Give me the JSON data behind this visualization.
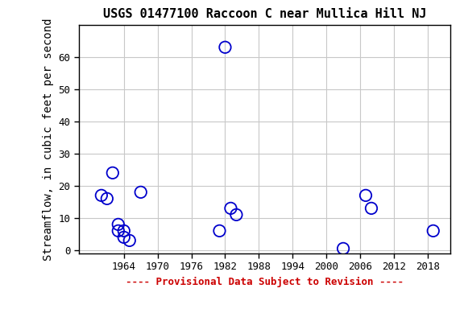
{
  "title": "USGS 01477100 Raccoon C near Mullica Hill NJ",
  "ylabel": "Streamflow, in cubic feet per second",
  "xlabel_note": "---- Provisional Data Subject to Revision ----",
  "x_data": [
    1960,
    1961,
    1962,
    1963,
    1963,
    1964,
    1964,
    1965,
    1967,
    1981,
    1982,
    1983,
    1984,
    2003,
    2007,
    2008,
    2019
  ],
  "y_data": [
    17,
    16,
    24,
    8,
    6,
    6,
    4,
    3,
    18,
    6,
    63,
    13,
    11,
    0.5,
    17,
    13,
    6
  ],
  "xlim": [
    1956,
    2022
  ],
  "ylim": [
    -1,
    70
  ],
  "xticks": [
    1964,
    1970,
    1976,
    1982,
    1988,
    1994,
    2000,
    2006,
    2012,
    2018
  ],
  "yticks": [
    0,
    10,
    20,
    30,
    40,
    50,
    60
  ],
  "marker_color": "#0000CC",
  "marker_size": 6,
  "bg_color": "#ffffff",
  "grid_color": "#c8c8c8",
  "note_color": "#cc0000",
  "title_fontsize": 11,
  "axis_label_fontsize": 10,
  "tick_fontsize": 9,
  "note_fontsize": 9
}
